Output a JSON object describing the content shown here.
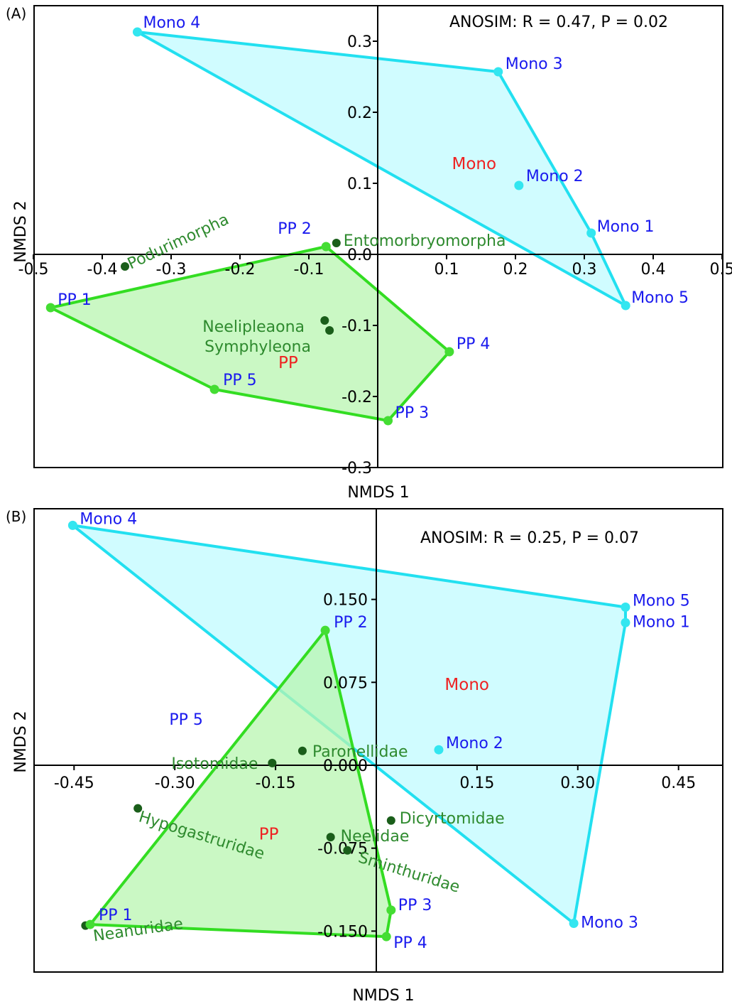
{
  "colors": {
    "mono_line": "#22e0f0",
    "mono_fill": "#c0fbff",
    "mono_point": "#33e6f0",
    "pp_line": "#33dd22",
    "pp_fill": "#b8f5b0",
    "pp_point": "#44dd33",
    "sample_label": "#1a1aee",
    "group_label": "#ee2222",
    "taxon_label": "#2e8a2e",
    "taxon_point": "#1a5e1a",
    "axis": "#000000"
  },
  "chart_data": [
    {
      "type": "scatter",
      "panel_label": "(A)",
      "annotation": "ANOSIM: R = 0.47, P = 0.02",
      "xlabel": "NMDS 1",
      "ylabel": "NMDS 2",
      "xlim": [
        -0.5,
        0.5
      ],
      "ylim": [
        -0.3,
        0.3
      ],
      "x_ticks": [
        -0.5,
        -0.4,
        -0.3,
        -0.2,
        -0.1,
        0.0,
        0.1,
        0.2,
        0.3,
        0.4,
        0.5
      ],
      "y_ticks": [
        -0.3,
        -0.2,
        -0.1,
        0.0,
        0.1,
        0.2,
        0.3
      ],
      "x_tick_labels": [
        "-0.5",
        "-0.4",
        "-0.3",
        "-0.2",
        "-0.1",
        "",
        "0.1",
        "0.2",
        "0.3",
        "0.4",
        "0.5"
      ],
      "y_tick_labels": [
        "-0.3",
        "-0.2",
        "-0.1",
        "0.0",
        "0.1",
        "0.2",
        "0.3"
      ],
      "groups": [
        {
          "name": "Mono",
          "label_pos": [
            0.14,
            0.12
          ],
          "hull_order": [
            "Mono 4",
            "Mono 3",
            "Mono 1",
            "Mono 5"
          ],
          "points": [
            {
              "label": "Mono 1",
              "x": 0.31,
              "y": 0.03
            },
            {
              "label": "Mono 2",
              "x": 0.205,
              "y": 0.097
            },
            {
              "label": "Mono 3",
              "x": 0.175,
              "y": 0.257
            },
            {
              "label": "Mono 4",
              "x": -0.349,
              "y": 0.313
            },
            {
              "label": "Mono 5",
              "x": 0.36,
              "y": -0.072
            }
          ]
        },
        {
          "name": "PP",
          "label_pos": [
            -0.13,
            -0.16
          ],
          "hull_order": [
            "PP 1",
            "PP 2",
            "PP 4",
            "PP 3",
            "PP 5"
          ],
          "points": [
            {
              "label": "PP 1",
              "x": -0.475,
              "y": -0.075
            },
            {
              "label": "PP 2",
              "x": -0.075,
              "y": 0.011
            },
            {
              "label": "PP 3",
              "x": 0.015,
              "y": -0.234
            },
            {
              "label": "PP 4",
              "x": 0.104,
              "y": -0.137
            },
            {
              "label": "PP 5",
              "x": -0.237,
              "y": -0.19
            }
          ]
        }
      ],
      "taxa": [
        {
          "label": "Podurimorpha",
          "x": -0.367,
          "y": -0.017
        },
        {
          "label": "Entomorbryomorpha",
          "x": -0.06,
          "y": 0.016
        },
        {
          "label": "Neelipleaona",
          "x": -0.077,
          "y": -0.093
        },
        {
          "label": "Symphyleona",
          "x": -0.07,
          "y": -0.107
        }
      ]
    },
    {
      "type": "scatter",
      "panel_label": "(B)",
      "annotation": "ANOSIM: R = 0.25, P = 0.07",
      "xlabel": "NMDS 1",
      "ylabel": "NMDS 2",
      "xlim": [
        -0.5,
        0.5
      ],
      "ylim": [
        -0.2,
        0.235
      ],
      "x_ticks": [
        -0.45,
        -0.3,
        -0.15,
        0.0,
        0.15,
        0.3,
        0.45
      ],
      "y_ticks": [
        -0.15,
        -0.075,
        0.0,
        0.075,
        0.15
      ],
      "x_tick_labels": [
        "-0.45",
        "-0.30",
        "-0.15",
        "",
        "0.15",
        "0.30",
        "0.45"
      ],
      "y_tick_labels": [
        "-0.150",
        "-0.075",
        "0.000",
        "0.075",
        "0.150"
      ],
      "groups": [
        {
          "name": "Mono",
          "label_pos": [
            0.135,
            0.068
          ],
          "hull_order": [
            "Mono 4",
            "Mono 5",
            "Mono 1",
            "Mono 3"
          ],
          "points": [
            {
              "label": "Mono 1",
              "x": 0.371,
              "y": 0.129
            },
            {
              "label": "Mono 2",
              "x": 0.093,
              "y": 0.014
            },
            {
              "label": "Mono 3",
              "x": 0.294,
              "y": -0.143
            },
            {
              "label": "Mono 4",
              "x": -0.452,
              "y": 0.217
            },
            {
              "label": "Mono 5",
              "x": 0.371,
              "y": 0.143
            }
          ]
        },
        {
          "name": "PP",
          "label_pos": [
            -0.16,
            -0.067
          ],
          "hull_order": [
            "PP 1",
            "PP 2",
            "PP 3",
            "PP 4"
          ],
          "points": [
            {
              "label": "PP 1",
              "x": -0.426,
              "y": -0.144
            },
            {
              "label": "PP 2",
              "x": -0.076,
              "y": 0.122
            },
            {
              "label": "PP 3",
              "x": 0.022,
              "y": -0.131
            },
            {
              "label": "PP 4",
              "x": 0.015,
              "y": -0.155
            },
            {
              "label": "PP 5",
              "x": -0.23,
              "y": 0.02
            }
          ]
        }
      ],
      "taxa": [
        {
          "label": "Isotomidae",
          "x": -0.155,
          "y": 0.002
        },
        {
          "label": "Paronellidae",
          "x": -0.11,
          "y": 0.013
        },
        {
          "label": "Hypogastruridae",
          "x": -0.355,
          "y": -0.039
        },
        {
          "label": "Dicyrtomidae",
          "x": 0.022,
          "y": -0.05
        },
        {
          "label": "Neelidae",
          "x": -0.068,
          "y": -0.065
        },
        {
          "label": "Sminthuridae",
          "x": -0.043,
          "y": -0.077
        },
        {
          "label": "Neanuridae",
          "x": -0.433,
          "y": -0.145
        }
      ]
    }
  ]
}
